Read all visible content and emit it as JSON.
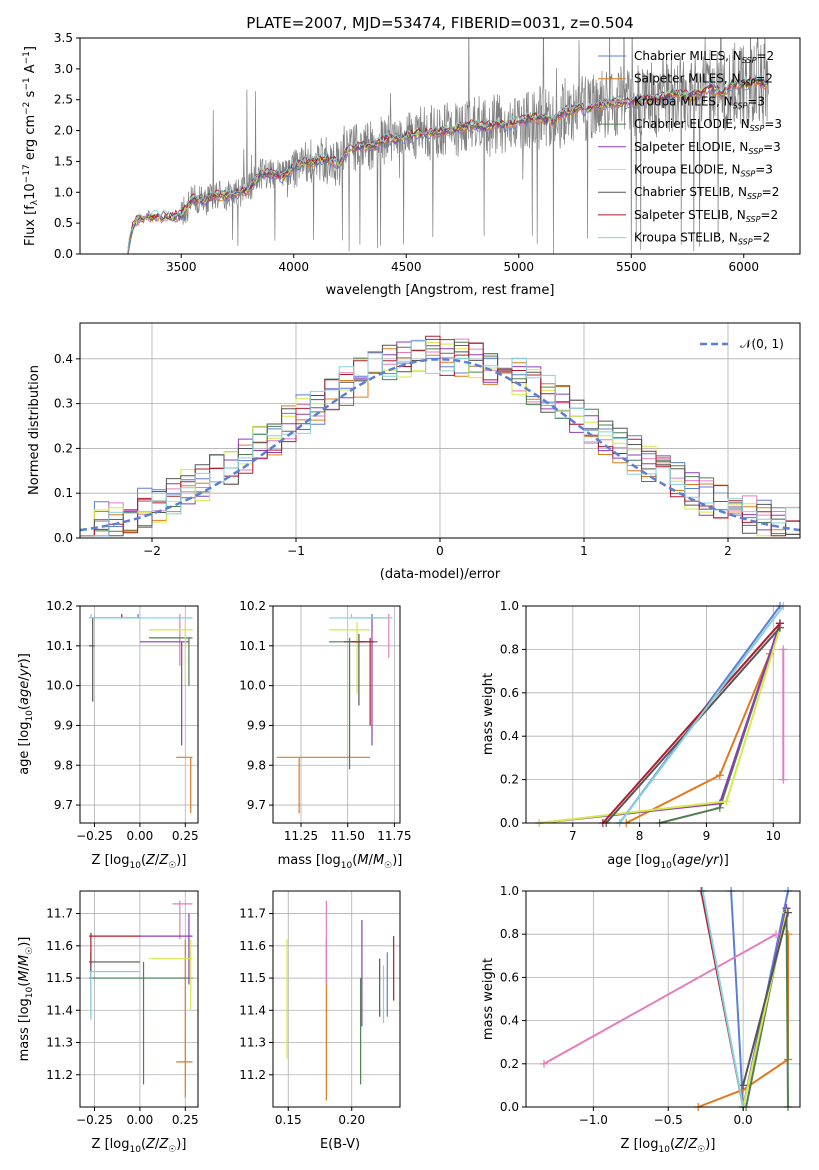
{
  "figure": {
    "title": "PLATE=2007, MJD=53474, FIBERID=0031, z=0.504",
    "panel_spectrum": {
      "xlabel": "wavelength [Angstrom, rest frame]",
      "ylabel": "Flux [f$_\\lambda$10$^{-17}$ erg cm$^{-2}$ s$^{-1}$ A$^{-1}$]"
    },
    "panel_residuals": {
      "xlabel": "(data-model)/error",
      "ylabel": "Normed distribution",
      "legend": "𝒩(0, 1)"
    },
    "panel_age_Z": {
      "xlabel": "Z [log10(Z/Z☉)]",
      "ylabel": "age [log10(age/yr)]"
    },
    "panel_age_mass": {
      "xlabel": "mass [log10(M/M☉)]"
    },
    "panel_weight_age": {
      "xlabel": "age [log10(age/yr)]",
      "ylabel": "mass weight"
    },
    "panel_mass_Z": {
      "xlabel": "Z [log10(Z/Z☉)]",
      "ylabel": "mass [log10(M/M☉)]"
    },
    "panel_mass_EBV": {
      "xlabel": "E(B-V)"
    },
    "panel_weight_Z": {
      "xlabel": "Z [log10(Z/Z☉)]",
      "ylabel": "mass weight"
    },
    "models": [
      {
        "name": "Chabrier MILES",
        "nssp": "2",
        "color": "#5b7fd6"
      },
      {
        "name": "Salpeter MILES",
        "nssp": "2",
        "color": "#e07a1f"
      },
      {
        "name": "Kroupa MILES",
        "nssp": "3",
        "color": "#e57cc0"
      },
      {
        "name": "Chabrier ELODIE",
        "nssp": "3",
        "color": "#4f7f4f"
      },
      {
        "name": "Salpeter ELODIE",
        "nssp": "3",
        "color": "#8b3db8"
      },
      {
        "name": "Kroupa ELODIE",
        "nssp": "3",
        "color": "#d6e84a"
      },
      {
        "name": "Chabrier STELIB",
        "nssp": "2",
        "color": "#555555"
      },
      {
        "name": "Salpeter STELIB",
        "nssp": "2",
        "color": "#b01c2e"
      },
      {
        "name": "Kroupa STELIB",
        "nssp": "2",
        "color": "#86d2dc"
      }
    ]
  },
  "chart_data": [
    {
      "type": "line",
      "title": "PLATE=2007, MJD=53474, FIBERID=0031, z=0.504",
      "xlabel": "wavelength [Angstrom, rest frame]",
      "ylabel": "Flux [f_λ 10^-17 erg cm^-2 s^-1 A^-1]",
      "xlim": [
        3050,
        6250
      ],
      "ylim": [
        0,
        3.5
      ],
      "xticks": [
        3500,
        4000,
        4500,
        5000,
        5500,
        6000
      ],
      "yticks": [
        0.0,
        0.5,
        1.0,
        1.5,
        2.0,
        2.5,
        3.0,
        3.5
      ],
      "model_continuum": {
        "x": [
          3260,
          3280,
          3300,
          3350,
          3400,
          3450,
          3500,
          3550,
          3600,
          3650,
          3700,
          3750,
          3800,
          3850,
          3900,
          3950,
          4000,
          4050,
          4100,
          4150,
          4200,
          4250,
          4300,
          4350,
          4400,
          4450,
          4500,
          4550,
          4600,
          4650,
          4700,
          4750,
          4800,
          4850,
          4900,
          4950,
          5000,
          5050,
          5100,
          5150,
          5200,
          5250,
          5300,
          5350,
          5400,
          5450,
          5500,
          5550,
          5600,
          5650,
          5700,
          5750,
          5800,
          5850,
          5900,
          5950,
          6000,
          6050,
          6100
        ],
        "y": [
          0.0,
          0.4,
          0.55,
          0.6,
          0.6,
          0.6,
          0.62,
          0.9,
          0.85,
          0.95,
          0.95,
          1.0,
          1.05,
          1.3,
          1.3,
          1.25,
          1.4,
          1.5,
          1.5,
          1.55,
          1.45,
          1.7,
          1.75,
          1.75,
          1.85,
          1.85,
          1.9,
          1.95,
          1.95,
          2.0,
          2.0,
          2.05,
          2.1,
          2.05,
          2.1,
          2.1,
          2.15,
          2.2,
          2.2,
          2.15,
          2.3,
          2.35,
          2.35,
          2.4,
          2.45,
          2.45,
          2.45,
          2.5,
          2.5,
          2.55,
          2.6,
          2.55,
          2.6,
          2.7,
          2.6,
          2.75,
          2.75,
          2.8,
          2.75
        ]
      },
      "series_names": [
        "Chabrier MILES, N_SSP=2",
        "Salpeter MILES, N_SSP=2",
        "Kroupa MILES, N_SSP=3",
        "Chabrier ELODIE, N_SSP=3",
        "Salpeter ELODIE, N_SSP=3",
        "Kroupa ELODIE, N_SSP=3",
        "Chabrier STELIB, N_SSP=2",
        "Salpeter STELIB, N_SSP=2",
        "Kroupa STELIB, N_SSP=2"
      ]
    },
    {
      "type": "line",
      "xlabel": "(data-model)/error",
      "ylabel": "Normed distribution",
      "xlim": [
        -2.5,
        2.5
      ],
      "ylim": [
        0,
        0.48
      ],
      "xticks": [
        -2,
        -1,
        0,
        1,
        2
      ],
      "yticks": [
        0.0,
        0.1,
        0.2,
        0.3,
        0.4
      ],
      "bin_edges": [
        -2.5,
        -2.4,
        -2.3,
        -2.2,
        -2.1,
        -2.0,
        -1.9,
        -1.8,
        -1.7,
        -1.6,
        -1.5,
        -1.4,
        -1.3,
        -1.2,
        -1.1,
        -1.0,
        -0.9,
        -0.8,
        -0.7,
        -0.6,
        -0.5,
        -0.4,
        -0.3,
        -0.2,
        -0.1,
        0.0,
        0.1,
        0.2,
        0.3,
        0.4,
        0.5,
        0.6,
        0.7,
        0.8,
        0.9,
        1.0,
        1.1,
        1.2,
        1.3,
        1.4,
        1.5,
        1.6,
        1.7,
        1.8,
        1.9,
        2.0,
        2.1,
        2.2,
        2.3,
        2.4,
        2.5
      ],
      "reference": "standard normal N(0,1)"
    },
    {
      "type": "scatter",
      "xlabel": "Z [log10(Z/Z☉)]",
      "ylabel": "age [log10(age/yr)]",
      "xlim": [
        -0.33,
        0.32
      ],
      "ylim": [
        9.655,
        10.2
      ],
      "xticks": [
        -0.25,
        0.0,
        0.25
      ],
      "yticks": [
        9.7,
        9.8,
        9.9,
        10.0,
        10.1,
        10.2
      ]
    },
    {
      "type": "scatter",
      "xlabel": "mass [log10(M/M☉)]",
      "xlim": [
        11.1,
        11.78
      ],
      "ylim": [
        9.655,
        10.2
      ],
      "xticks": [
        11.25,
        11.5,
        11.75
      ],
      "yticks": [
        9.7,
        9.8,
        9.9,
        10.0,
        10.1,
        10.2
      ]
    },
    {
      "type": "line",
      "xlabel": "age [log10(age/yr)]",
      "ylabel": "mass weight",
      "xlim": [
        6.3,
        10.4
      ],
      "ylim": [
        0,
        1
      ],
      "xticks": [
        7,
        8,
        9,
        10
      ],
      "yticks": [
        0.0,
        0.2,
        0.4,
        0.6,
        0.8,
        1.0
      ]
    },
    {
      "type": "scatter",
      "xlabel": "Z [log10(Z/Z☉)]",
      "ylabel": "mass [log10(M/M☉)]",
      "xlim": [
        -0.33,
        0.32
      ],
      "ylim": [
        11.1,
        11.77
      ],
      "xticks": [
        -0.25,
        0.0,
        0.25
      ],
      "yticks": [
        11.2,
        11.3,
        11.4,
        11.5,
        11.6,
        11.7
      ]
    },
    {
      "type": "scatter",
      "xlabel": "E(B-V)",
      "xlim": [
        0.138,
        0.238
      ],
      "ylim": [
        11.1,
        11.77
      ],
      "xticks": [
        0.15,
        0.2
      ],
      "yticks": [
        11.2,
        11.3,
        11.4,
        11.5,
        11.6,
        11.7
      ]
    },
    {
      "type": "line",
      "xlabel": "Z [log10(Z/Z☉)]",
      "ylabel": "mass weight",
      "xlim": [
        -1.45,
        0.38
      ],
      "ylim": [
        0,
        1
      ],
      "xticks": [
        -1.0,
        -0.5,
        0.0
      ],
      "yticks": [
        0.0,
        0.2,
        0.4,
        0.6,
        0.8,
        1.0
      ]
    }
  ]
}
